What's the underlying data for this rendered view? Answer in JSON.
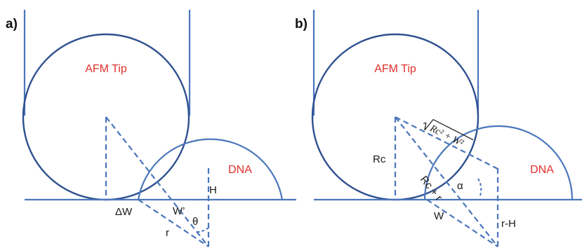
{
  "colors": {
    "line": "#4a76bb",
    "tip_outline": "#2e508f",
    "label_red": "#e0302a",
    "text": "#1a1a1a"
  },
  "panel_a": {
    "panel_label": "a)",
    "tip_label": "AFM Tip",
    "dna_label": "DNA",
    "labels": {
      "delta_w": "ΔW",
      "w_prime": "W’",
      "h": "H",
      "r": "r",
      "theta": "θ"
    }
  },
  "panel_b": {
    "panel_label": "b)",
    "tip_label": "AFM Tip",
    "dna_label": "DNA",
    "labels": {
      "rc": "Rc",
      "rc_plus_r": "Rc + r",
      "alpha": "α",
      "w": "W",
      "r_minus_h": "r-H",
      "sqrt_inner": "Rc² + W²"
    }
  }
}
